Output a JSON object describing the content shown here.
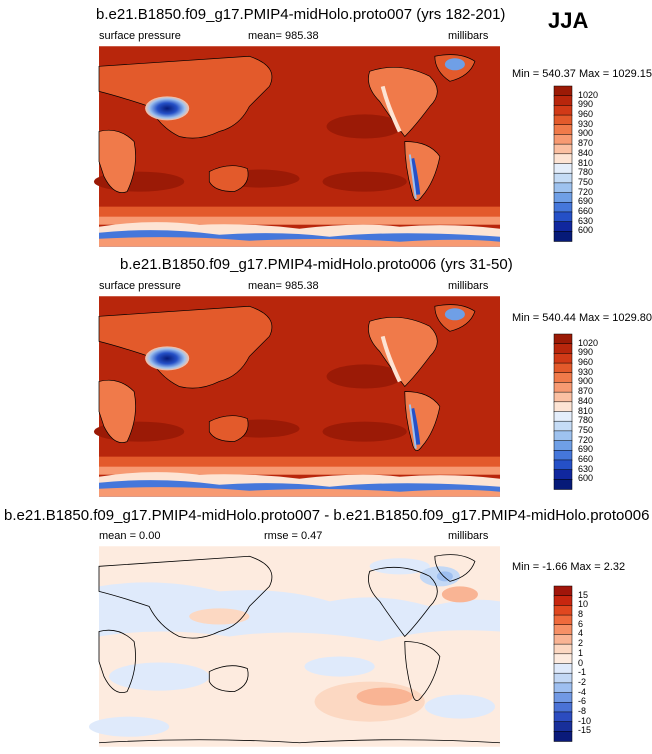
{
  "season": "JJA",
  "panels": [
    {
      "title": "b.e21.B1850.f09_g17.PMIP4-midHolo.proto007 (yrs 182-201)",
      "field": "surface pressure",
      "stat": "mean= 985.38",
      "units": "millibars",
      "minmax": "Min = 540.37 Max = 1029.15",
      "colorbar_labels": [
        "1020",
        "990",
        "960",
        "930",
        "900",
        "870",
        "840",
        "810",
        "780",
        "750",
        "720",
        "690",
        "660",
        "630",
        "600"
      ]
    },
    {
      "title": "b.e21.B1850.f09_g17.PMIP4-midHolo.proto006 (yrs 31-50)",
      "field": "surface pressure",
      "stat": "mean= 985.38",
      "units": "millibars",
      "minmax": "Min = 540.44 Max = 1029.80",
      "colorbar_labels": [
        "1020",
        "990",
        "960",
        "930",
        "900",
        "870",
        "840",
        "810",
        "780",
        "750",
        "720",
        "690",
        "660",
        "630",
        "600"
      ]
    },
    {
      "title": "b.e21.B1850.f09_g17.PMIP4-midHolo.proto007 - b.e21.B1850.f09_g17.PMIP4-midHolo.proto006",
      "field": "mean =   0.00",
      "stat": "rmse =   0.47",
      "units": "millibars",
      "minmax": "Min =  -1.66 Max =   2.32",
      "colorbar_labels": [
        "15",
        "10",
        "8",
        "6",
        "4",
        "2",
        "1",
        "0",
        "-1",
        "-2",
        "-4",
        "-6",
        "-8",
        "-10",
        "-15"
      ]
    }
  ],
  "colors": {
    "abs_scale": [
      "#9b1a06",
      "#b8260c",
      "#d13a17",
      "#e35a2b",
      "#f07a4a",
      "#f79a72",
      "#fbc0a2",
      "#fde4d4",
      "#e4eefb",
      "#c5dcf6",
      "#9ec2ef",
      "#6f9fe6",
      "#4577db",
      "#2550c7",
      "#10279e",
      "#061a78"
    ],
    "diff_scale": [
      "#a1150a",
      "#c7260f",
      "#e0471f",
      "#ef6a3c",
      "#f69066",
      "#f9b494",
      "#fcd8c2",
      "#fdebdf",
      "#dfeafb",
      "#c3d8f5",
      "#9ebff0",
      "#7199e4",
      "#4a72d6",
      "#2c4cc0",
      "#182f9a",
      "#0a1a7a"
    ]
  }
}
